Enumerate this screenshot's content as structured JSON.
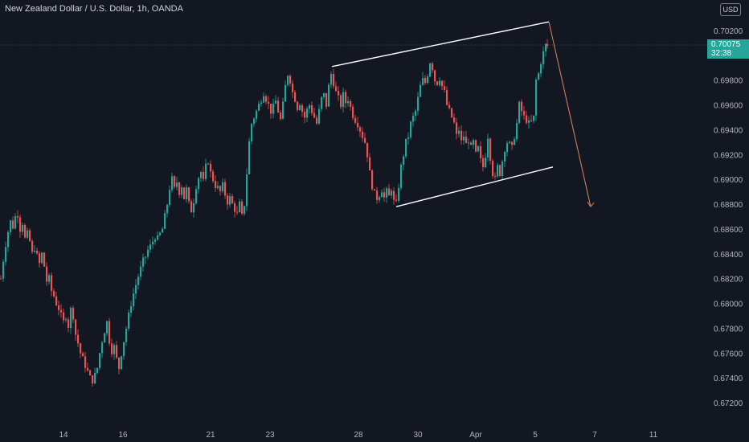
{
  "header": {
    "symbol_title": "New Zealand Dollar / U.S. Dollar, 1h, OANDA",
    "currency": "USD"
  },
  "price_tag": {
    "price": "0.70075",
    "countdown": "32:38",
    "color": "#26a69a"
  },
  "colors": {
    "background": "#131722",
    "up": "#26a69a",
    "down": "#ef5350",
    "trendline": "#ffffff",
    "projection": "#e0875a"
  },
  "chart_data": {
    "type": "candlestick",
    "title": "New Zealand Dollar / U.S. Dollar, 1h, OANDA",
    "y_ticks": [
      "0.70200",
      "0.69800",
      "0.69600",
      "0.69400",
      "0.69200",
      "0.69000",
      "0.68800",
      "0.68600",
      "0.68400",
      "0.68200",
      "0.68000",
      "0.67800",
      "0.67600",
      "0.67400",
      "0.67200"
    ],
    "y_tick_values": [
      0.702,
      0.698,
      0.696,
      0.694,
      0.692,
      0.69,
      0.688,
      0.686,
      0.684,
      0.682,
      0.68,
      0.678,
      0.676,
      0.674,
      0.672
    ],
    "ylim": [
      0.6712,
      0.7035
    ],
    "x_ticks": [
      "14",
      "16",
      "21",
      "23",
      "28",
      "30",
      "Apr",
      "5",
      "7",
      "11"
    ],
    "last_price": 0.70075,
    "grid": false,
    "close_path": [
      [
        0,
        0.682
      ],
      [
        3,
        0.6835
      ],
      [
        6,
        0.6848
      ],
      [
        9,
        0.6858
      ],
      [
        12,
        0.6866
      ],
      [
        15,
        0.6862
      ],
      [
        18,
        0.687
      ],
      [
        21,
        0.6872
      ],
      [
        24,
        0.686
      ],
      [
        27,
        0.6865
      ],
      [
        30,
        0.6852
      ],
      [
        33,
        0.6856
      ],
      [
        36,
        0.685
      ],
      [
        39,
        0.684
      ],
      [
        42,
        0.6845
      ],
      [
        45,
        0.6838
      ],
      [
        48,
        0.6832
      ],
      [
        51,
        0.684
      ],
      [
        54,
        0.683
      ],
      [
        57,
        0.6818
      ],
      [
        60,
        0.682
      ],
      [
        63,
        0.681
      ],
      [
        66,
        0.6806
      ],
      [
        69,
        0.68
      ],
      [
        72,
        0.6796
      ],
      [
        75,
        0.679
      ],
      [
        78,
        0.6785
      ],
      [
        81,
        0.679
      ],
      [
        84,
        0.6782
      ],
      [
        87,
        0.6795
      ],
      [
        90,
        0.679
      ],
      [
        93,
        0.6775
      ],
      [
        96,
        0.6768
      ],
      [
        99,
        0.676
      ],
      [
        102,
        0.6755
      ],
      [
        105,
        0.675
      ],
      [
        108,
        0.6745
      ],
      [
        111,
        0.674
      ],
      [
        114,
        0.6738
      ],
      [
        117,
        0.6742
      ],
      [
        120,
        0.6748
      ],
      [
        123,
        0.676
      ],
      [
        126,
        0.677
      ],
      [
        129,
        0.6778
      ],
      [
        132,
        0.6785
      ],
      [
        135,
        0.677
      ],
      [
        138,
        0.6762
      ],
      [
        141,
        0.6765
      ],
      [
        144,
        0.6755
      ],
      [
        147,
        0.6748
      ],
      [
        150,
        0.676
      ],
      [
        153,
        0.677
      ],
      [
        156,
        0.678
      ],
      [
        159,
        0.679
      ],
      [
        162,
        0.68
      ],
      [
        165,
        0.6808
      ],
      [
        168,
        0.6815
      ],
      [
        171,
        0.6822
      ],
      [
        174,
        0.6828
      ],
      [
        177,
        0.6834
      ],
      [
        180,
        0.6838
      ],
      [
        183,
        0.6843
      ],
      [
        186,
        0.6846
      ],
      [
        189,
        0.685
      ],
      [
        192,
        0.6854
      ],
      [
        195,
        0.6852
      ],
      [
        198,
        0.6856
      ],
      [
        201,
        0.686
      ],
      [
        204,
        0.687
      ],
      [
        207,
        0.688
      ],
      [
        210,
        0.6893
      ],
      [
        213,
        0.69
      ],
      [
        216,
        0.6892
      ],
      [
        219,
        0.6898
      ],
      [
        222,
        0.689
      ],
      [
        225,
        0.6895
      ],
      [
        228,
        0.6885
      ],
      [
        231,
        0.6892
      ],
      [
        234,
        0.688
      ],
      [
        237,
        0.6875
      ],
      [
        240,
        0.6883
      ],
      [
        243,
        0.6895
      ],
      [
        246,
        0.6902
      ],
      [
        249,
        0.6906
      ],
      [
        252,
        0.6898
      ],
      [
        255,
        0.691
      ],
      [
        258,
        0.6915
      ],
      [
        261,
        0.6905
      ],
      [
        264,
        0.69
      ],
      [
        267,
        0.6895
      ],
      [
        270,
        0.6893
      ],
      [
        273,
        0.689
      ],
      [
        276,
        0.6895
      ],
      [
        279,
        0.6888
      ],
      [
        282,
        0.6882
      ],
      [
        285,
        0.6885
      ],
      [
        288,
        0.688
      ],
      [
        291,
        0.6876
      ],
      [
        294,
        0.6872
      ],
      [
        297,
        0.688
      ],
      [
        300,
        0.687
      ],
      [
        303,
        0.688
      ],
      [
        306,
        0.6905
      ],
      [
        309,
        0.693
      ],
      [
        312,
        0.6945
      ],
      [
        315,
        0.695
      ],
      [
        318,
        0.6955
      ],
      [
        321,
        0.696
      ],
      [
        324,
        0.6965
      ],
      [
        327,
        0.697
      ],
      [
        330,
        0.6965
      ],
      [
        333,
        0.696
      ],
      [
        336,
        0.6955
      ],
      [
        339,
        0.6958
      ],
      [
        342,
        0.6963
      ],
      [
        345,
        0.6955
      ],
      [
        348,
        0.6948
      ],
      [
        351,
        0.696
      ],
      [
        354,
        0.6975
      ],
      [
        357,
        0.6985
      ],
      [
        360,
        0.698
      ],
      [
        363,
        0.697
      ],
      [
        366,
        0.6965
      ],
      [
        369,
        0.6958
      ],
      [
        372,
        0.6962
      ],
      [
        375,
        0.6955
      ],
      [
        378,
        0.695
      ],
      [
        381,
        0.6956
      ],
      [
        384,
        0.696
      ],
      [
        387,
        0.6955
      ],
      [
        390,
        0.695
      ],
      [
        393,
        0.6945
      ],
      [
        396,
        0.6955
      ],
      [
        399,
        0.6965
      ],
      [
        402,
        0.6968
      ],
      [
        405,
        0.696
      ],
      [
        408,
        0.6975
      ],
      [
        411,
        0.6985
      ],
      [
        414,
        0.6978
      ],
      [
        417,
        0.697
      ],
      [
        420,
        0.6965
      ],
      [
        423,
        0.696
      ],
      [
        426,
        0.6968
      ],
      [
        429,
        0.6962
      ],
      [
        432,
        0.6965
      ],
      [
        435,
        0.6958
      ],
      [
        438,
        0.6952
      ],
      [
        441,
        0.6948
      ],
      [
        444,
        0.6945
      ],
      [
        447,
        0.694
      ],
      [
        450,
        0.6935
      ],
      [
        453,
        0.693
      ],
      [
        456,
        0.692
      ],
      [
        459,
        0.6905
      ],
      [
        462,
        0.6895
      ],
      [
        465,
        0.6888
      ],
      [
        468,
        0.6885
      ],
      [
        471,
        0.6888
      ],
      [
        474,
        0.6892
      ],
      [
        477,
        0.6885
      ],
      [
        480,
        0.689
      ],
      [
        483,
        0.6886
      ],
      [
        486,
        0.6893
      ],
      [
        489,
        0.6882
      ],
      [
        492,
        0.688
      ],
      [
        495,
        0.6895
      ],
      [
        498,
        0.691
      ],
      [
        501,
        0.692
      ],
      [
        504,
        0.693
      ],
      [
        507,
        0.6935
      ],
      [
        510,
        0.6945
      ],
      [
        513,
        0.695
      ],
      [
        516,
        0.6955
      ],
      [
        519,
        0.6965
      ],
      [
        522,
        0.6975
      ],
      [
        525,
        0.698
      ],
      [
        528,
        0.6978
      ],
      [
        531,
        0.6985
      ],
      [
        534,
        0.6995
      ],
      [
        537,
        0.699
      ],
      [
        540,
        0.698
      ],
      [
        543,
        0.6978
      ],
      [
        546,
        0.6982
      ],
      [
        549,
        0.6975
      ],
      [
        552,
        0.697
      ],
      [
        555,
        0.696
      ],
      [
        558,
        0.6955
      ],
      [
        561,
        0.695
      ],
      [
        564,
        0.6945
      ],
      [
        567,
        0.6935
      ],
      [
        570,
        0.694
      ],
      [
        573,
        0.693
      ],
      [
        576,
        0.6935
      ],
      [
        579,
        0.6928
      ],
      [
        582,
        0.6932
      ],
      [
        585,
        0.6925
      ],
      [
        588,
        0.693
      ],
      [
        591,
        0.692
      ],
      [
        594,
        0.6925
      ],
      [
        597,
        0.6915
      ],
      [
        600,
        0.691
      ],
      [
        603,
        0.692
      ],
      [
        606,
        0.6935
      ],
      [
        609,
        0.6918
      ],
      [
        612,
        0.6905
      ],
      [
        615,
        0.69
      ],
      [
        618,
        0.691
      ],
      [
        621,
        0.6905
      ],
      [
        624,
        0.6915
      ],
      [
        627,
        0.6925
      ],
      [
        630,
        0.693
      ],
      [
        633,
        0.6928
      ],
      [
        636,
        0.6925
      ],
      [
        639,
        0.6935
      ],
      [
        642,
        0.6945
      ],
      [
        645,
        0.696
      ],
      [
        648,
        0.6955
      ],
      [
        651,
        0.695
      ],
      [
        654,
        0.6948
      ],
      [
        657,
        0.6945
      ],
      [
        660,
        0.6946
      ],
      [
        663,
        0.695
      ],
      [
        666,
        0.698
      ],
      [
        669,
        0.6985
      ],
      [
        672,
        0.6995
      ],
      [
        675,
        0.7002
      ],
      [
        678,
        0.7008
      ],
      [
        680,
        0.70075
      ]
    ],
    "annotations": {
      "upper_channel": [
        [
          413,
          0.6991
        ],
        [
          683,
          0.7027
        ]
      ],
      "lower_channel": [
        [
          493,
          0.6878
        ],
        [
          688,
          0.691
        ]
      ],
      "projection": [
        [
          683,
          0.7027
        ],
        [
          735,
          0.6878
        ]
      ]
    }
  }
}
